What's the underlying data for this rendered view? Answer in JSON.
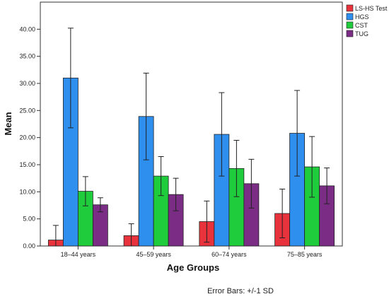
{
  "chart_data": {
    "type": "bar",
    "categories": [
      "18–44 years",
      "45–59 years",
      "60–74 years",
      "75–85 years"
    ],
    "series": [
      {
        "name": "LS-HS Test",
        "color": "#e8333c",
        "values": [
          1.1,
          1.9,
          4.5,
          6.0
        ],
        "sd": [
          2.7,
          2.2,
          3.8,
          4.5
        ]
      },
      {
        "name": "HGS",
        "color": "#2e8fef",
        "values": [
          31.0,
          23.9,
          20.6,
          20.8
        ],
        "sd": [
          9.2,
          8.0,
          7.7,
          7.9
        ]
      },
      {
        "name": "CST",
        "color": "#1fcc3c",
        "values": [
          10.1,
          12.9,
          14.3,
          14.6
        ],
        "sd": [
          2.7,
          3.6,
          5.2,
          5.6
        ]
      },
      {
        "name": "TUG",
        "color": "#7b2d86",
        "values": [
          7.6,
          9.5,
          11.5,
          11.1
        ],
        "sd": [
          1.3,
          3.0,
          4.5,
          3.3
        ]
      }
    ],
    "ylabel": "Mean",
    "xlabel": "Age Groups",
    "ylim": [
      0,
      45
    ],
    "yticks": [
      "0.00",
      "5.00",
      "10.00",
      "15.00",
      "20.00",
      "25.00",
      "30.00",
      "35.00",
      "40.00"
    ],
    "legend_position": "top-right",
    "footnote": "Error Bars: +/-1 SD"
  }
}
